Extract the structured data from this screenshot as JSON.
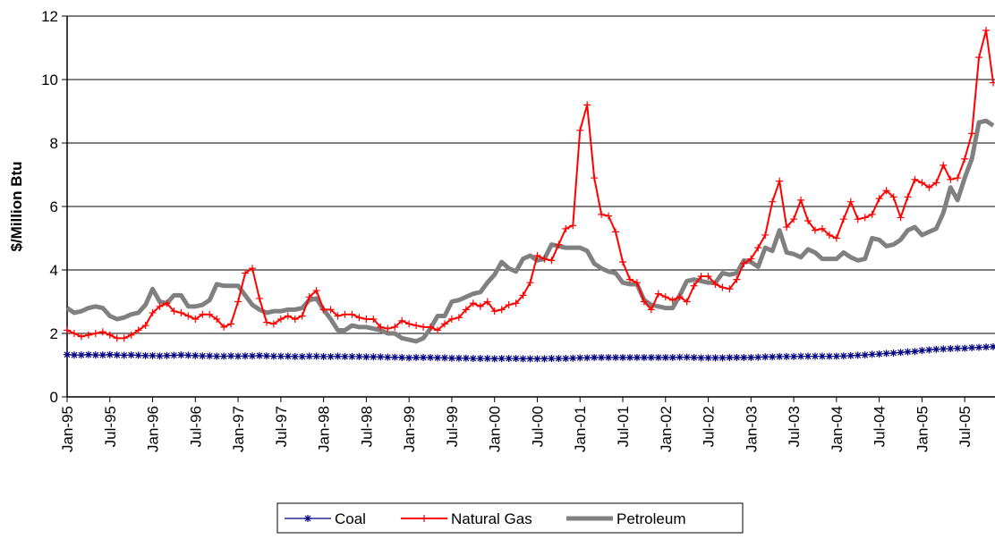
{
  "chart_data": {
    "type": "line",
    "y_label": "$/Million Btu",
    "ylim": [
      0,
      12
    ],
    "yticks": [
      0,
      2,
      4,
      6,
      8,
      10,
      12
    ],
    "grid": true,
    "legend": "bottom",
    "categories": [
      "Jan-95",
      null,
      null,
      null,
      null,
      null,
      "Jul-95",
      null,
      null,
      null,
      null,
      null,
      "Jan-96",
      null,
      null,
      null,
      null,
      null,
      "Jul-96",
      null,
      null,
      null,
      null,
      null,
      "Jan-97",
      null,
      null,
      null,
      null,
      null,
      "Jul-97",
      null,
      null,
      null,
      null,
      null,
      "Jan-98",
      null,
      null,
      null,
      null,
      null,
      "Jul-98",
      null,
      null,
      null,
      null,
      null,
      "Jan-99",
      null,
      null,
      null,
      null,
      null,
      "Jul-99",
      null,
      null,
      null,
      null,
      null,
      "Jan-00",
      null,
      null,
      null,
      null,
      null,
      "Jul-00",
      null,
      null,
      null,
      null,
      null,
      "Jan-01",
      null,
      null,
      null,
      null,
      null,
      "Jul-01",
      null,
      null,
      null,
      null,
      null,
      "Jan-02",
      null,
      null,
      null,
      null,
      null,
      "Jul-02",
      null,
      null,
      null,
      null,
      null,
      "Jan-03",
      null,
      null,
      null,
      null,
      null,
      "Jul-03",
      null,
      null,
      null,
      null,
      null,
      "Jan-04",
      null,
      null,
      null,
      null,
      null,
      "Jul-04",
      null,
      null,
      null,
      null,
      null,
      "Jan-05",
      null,
      null,
      null,
      null,
      null,
      "Jul-05",
      null,
      null,
      null,
      null
    ],
    "series": [
      {
        "name": "Coal",
        "color": "#000080",
        "marker": "star",
        "values": [
          1.33,
          1.32,
          1.32,
          1.33,
          1.32,
          1.32,
          1.33,
          1.32,
          1.31,
          1.32,
          1.31,
          1.3,
          1.3,
          1.29,
          1.3,
          1.31,
          1.32,
          1.31,
          1.3,
          1.29,
          1.29,
          1.28,
          1.28,
          1.29,
          1.28,
          1.29,
          1.29,
          1.3,
          1.29,
          1.28,
          1.28,
          1.28,
          1.27,
          1.27,
          1.28,
          1.28,
          1.27,
          1.27,
          1.28,
          1.27,
          1.27,
          1.27,
          1.26,
          1.26,
          1.26,
          1.25,
          1.25,
          1.24,
          1.23,
          1.24,
          1.24,
          1.24,
          1.23,
          1.23,
          1.22,
          1.22,
          1.22,
          1.21,
          1.21,
          1.21,
          1.2,
          1.21,
          1.21,
          1.21,
          1.2,
          1.2,
          1.2,
          1.2,
          1.21,
          1.21,
          1.21,
          1.22,
          1.23,
          1.23,
          1.24,
          1.24,
          1.24,
          1.24,
          1.24,
          1.24,
          1.24,
          1.24,
          1.24,
          1.24,
          1.24,
          1.24,
          1.25,
          1.25,
          1.24,
          1.23,
          1.23,
          1.23,
          1.23,
          1.24,
          1.24,
          1.24,
          1.24,
          1.25,
          1.26,
          1.26,
          1.27,
          1.27,
          1.27,
          1.28,
          1.28,
          1.28,
          1.28,
          1.28,
          1.28,
          1.29,
          1.3,
          1.31,
          1.32,
          1.34,
          1.35,
          1.37,
          1.38,
          1.4,
          1.42,
          1.43,
          1.46,
          1.48,
          1.5,
          1.51,
          1.52,
          1.53,
          1.53,
          1.55,
          1.56,
          1.57,
          1.58
        ]
      },
      {
        "name": "Natural Gas",
        "color": "#ff0000",
        "marker": "plus",
        "values": [
          2.1,
          2.0,
          1.9,
          1.95,
          2.0,
          2.05,
          1.95,
          1.85,
          1.85,
          1.95,
          2.1,
          2.25,
          2.65,
          2.85,
          2.95,
          2.7,
          2.65,
          2.55,
          2.45,
          2.6,
          2.6,
          2.45,
          2.2,
          2.3,
          3.0,
          3.9,
          4.05,
          3.1,
          2.35,
          2.3,
          2.45,
          2.55,
          2.45,
          2.55,
          3.15,
          3.35,
          2.75,
          2.75,
          2.55,
          2.6,
          2.6,
          2.5,
          2.45,
          2.45,
          2.2,
          2.15,
          2.2,
          2.4,
          2.3,
          2.25,
          2.2,
          2.2,
          2.1,
          2.3,
          2.45,
          2.5,
          2.75,
          2.95,
          2.85,
          3.0,
          2.7,
          2.75,
          2.9,
          2.95,
          3.2,
          3.6,
          4.45,
          4.35,
          4.3,
          4.8,
          5.3,
          5.4,
          8.4,
          9.2,
          6.9,
          5.75,
          5.7,
          5.2,
          4.25,
          3.7,
          3.6,
          3.0,
          2.75,
          3.25,
          3.15,
          3.05,
          3.15,
          3.0,
          3.5,
          3.8,
          3.8,
          3.55,
          3.45,
          3.4,
          3.7,
          4.2,
          4.35,
          4.7,
          5.1,
          6.15,
          6.8,
          5.35,
          5.6,
          6.2,
          5.55,
          5.25,
          5.3,
          5.1,
          5.0,
          5.6,
          6.15,
          5.6,
          5.65,
          5.75,
          6.25,
          6.5,
          6.3,
          5.65,
          6.3,
          6.85,
          6.75,
          6.6,
          6.75,
          7.3,
          6.85,
          6.9,
          7.5,
          8.3,
          10.7,
          11.55,
          9.9
        ]
      },
      {
        "name": "Petroleum",
        "color": "#808080",
        "marker": "none",
        "values": [
          2.8,
          2.65,
          2.7,
          2.8,
          2.85,
          2.8,
          2.55,
          2.45,
          2.5,
          2.6,
          2.65,
          2.9,
          3.4,
          3.0,
          2.95,
          3.2,
          3.2,
          2.85,
          2.85,
          2.9,
          3.05,
          3.55,
          3.5,
          3.5,
          3.5,
          3.2,
          2.9,
          2.75,
          2.65,
          2.7,
          2.7,
          2.75,
          2.75,
          2.8,
          3.05,
          3.1,
          2.75,
          2.45,
          2.1,
          2.1,
          2.25,
          2.2,
          2.2,
          2.15,
          2.1,
          2.0,
          2.0,
          1.85,
          1.8,
          1.75,
          1.85,
          2.15,
          2.55,
          2.55,
          3.0,
          3.05,
          3.15,
          3.25,
          3.3,
          3.6,
          3.85,
          4.25,
          4.05,
          3.95,
          4.35,
          4.45,
          4.3,
          4.35,
          4.8,
          4.75,
          4.7,
          4.7,
          4.7,
          4.6,
          4.2,
          4.05,
          3.95,
          3.9,
          3.6,
          3.55,
          3.55,
          3.05,
          2.9,
          2.85,
          2.8,
          2.8,
          3.2,
          3.65,
          3.7,
          3.65,
          3.6,
          3.6,
          3.9,
          3.85,
          3.9,
          4.3,
          4.25,
          4.1,
          4.7,
          4.6,
          5.25,
          4.55,
          4.5,
          4.4,
          4.65,
          4.55,
          4.35,
          4.35,
          4.35,
          4.55,
          4.4,
          4.3,
          4.35,
          5.0,
          4.95,
          4.75,
          4.8,
          4.95,
          5.25,
          5.35,
          5.1,
          5.2,
          5.3,
          5.8,
          6.6,
          6.2,
          6.9,
          7.5,
          8.65,
          8.7,
          8.55
        ]
      }
    ]
  }
}
